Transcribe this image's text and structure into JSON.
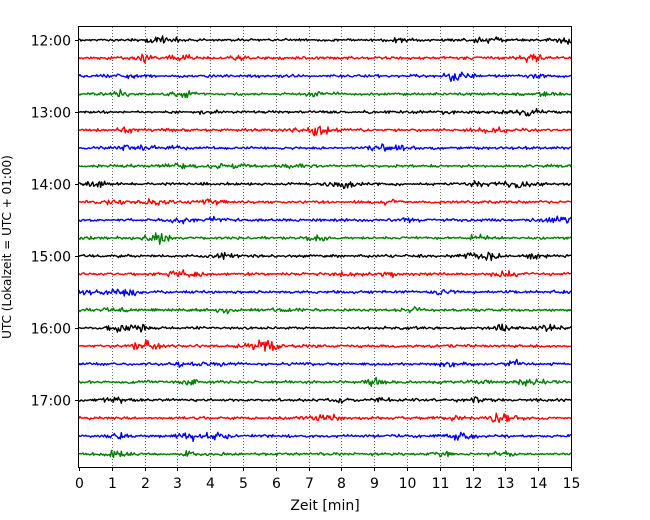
{
  "chart_data": {
    "type": "line",
    "title": "",
    "xlabel": "Zeit  [min]",
    "ylabel": "UTC (Lokalzeit = UTC + 01:00)",
    "xlim": [
      0,
      15
    ],
    "x_ticks": [
      0,
      1,
      2,
      3,
      4,
      5,
      6,
      7,
      8,
      9,
      10,
      11,
      12,
      13,
      14,
      15
    ],
    "x_tick_labels": [
      "0",
      "1",
      "2",
      "3",
      "4",
      "5",
      "6",
      "7",
      "8",
      "9",
      "10",
      "11",
      "12",
      "13",
      "14",
      "15"
    ],
    "y_tick_labels": [
      "12:00",
      "13:00",
      "14:00",
      "15:00",
      "16:00",
      "17:00"
    ],
    "grid": "vertical dotted at each minute",
    "legend": "none",
    "description_trace_count": 24,
    "trace_color_cycle": [
      "#000000",
      "#ff0000",
      "#0000ff",
      "#008000"
    ],
    "rows": [
      {
        "start_time": "12:00",
        "color": "#000000"
      },
      {
        "start_time": "12:15",
        "color": "#ff0000"
      },
      {
        "start_time": "12:30",
        "color": "#0000ff"
      },
      {
        "start_time": "12:45",
        "color": "#008000"
      },
      {
        "start_time": "13:00",
        "color": "#000000"
      },
      {
        "start_time": "13:15",
        "color": "#ff0000"
      },
      {
        "start_time": "13:30",
        "color": "#0000ff"
      },
      {
        "start_time": "13:45",
        "color": "#008000"
      },
      {
        "start_time": "14:00",
        "color": "#000000"
      },
      {
        "start_time": "14:15",
        "color": "#ff0000"
      },
      {
        "start_time": "14:30",
        "color": "#0000ff"
      },
      {
        "start_time": "14:45",
        "color": "#008000"
      },
      {
        "start_time": "15:00",
        "color": "#000000"
      },
      {
        "start_time": "15:15",
        "color": "#ff0000"
      },
      {
        "start_time": "15:30",
        "color": "#0000ff"
      },
      {
        "start_time": "15:45",
        "color": "#008000"
      },
      {
        "start_time": "16:00",
        "color": "#000000"
      },
      {
        "start_time": "16:15",
        "color": "#ff0000"
      },
      {
        "start_time": "16:30",
        "color": "#0000ff"
      },
      {
        "start_time": "16:45",
        "color": "#008000"
      },
      {
        "start_time": "17:00",
        "color": "#000000"
      },
      {
        "start_time": "17:15",
        "color": "#ff0000"
      },
      {
        "start_time": "17:30",
        "color": "#0000ff"
      },
      {
        "start_time": "17:45",
        "color": "#008000"
      }
    ]
  }
}
